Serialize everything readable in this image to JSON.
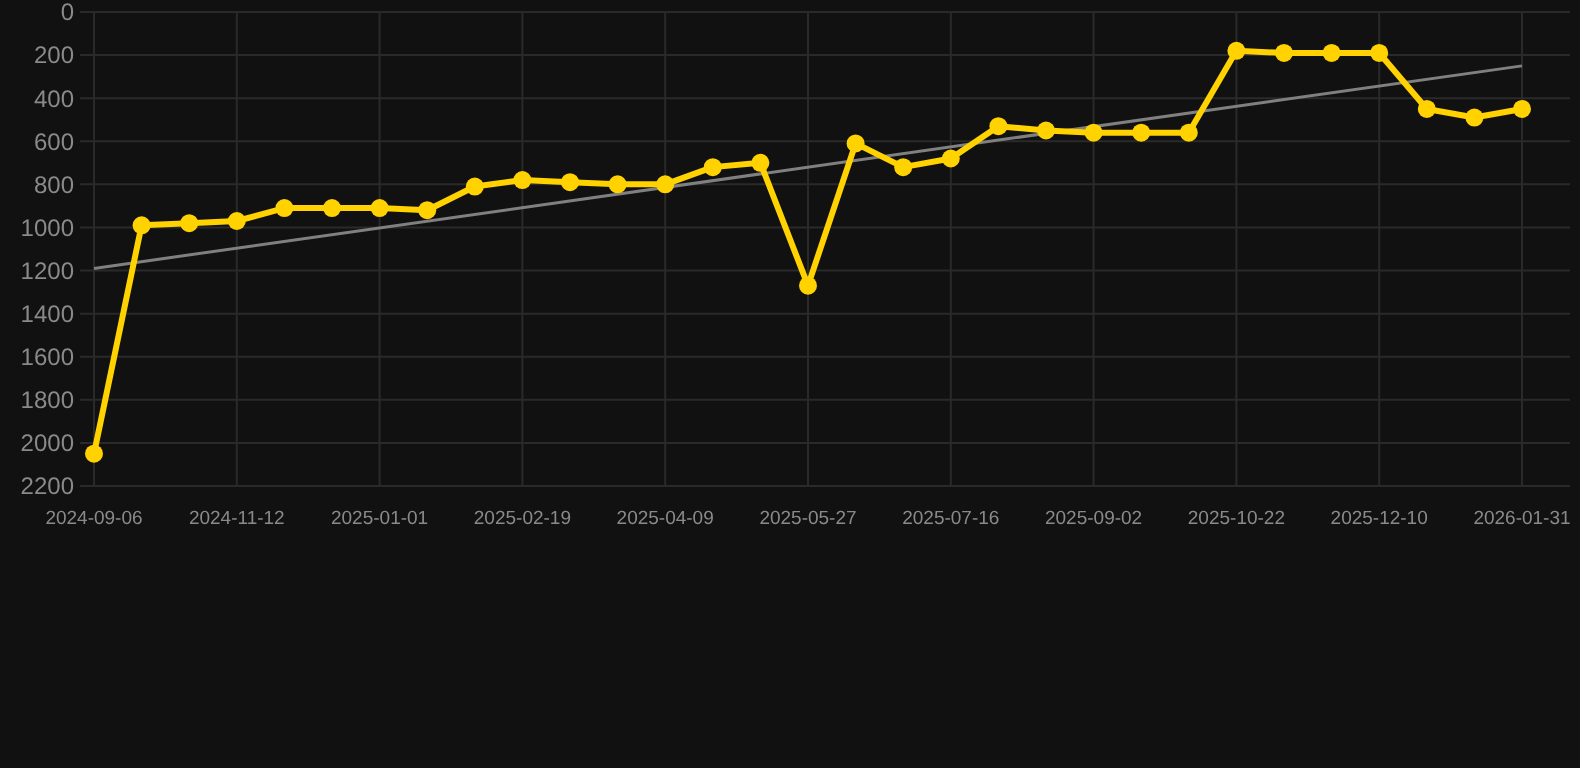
{
  "chart_data": {
    "type": "line",
    "categories": [
      "2024-09-06",
      null,
      null,
      "2024-11-12",
      null,
      null,
      "2025-01-01",
      null,
      null,
      "2025-02-19",
      null,
      null,
      "2025-04-09",
      null,
      null,
      "2025-05-27",
      null,
      null,
      "2025-07-16",
      null,
      null,
      "2025-09-02",
      null,
      null,
      "2025-10-22",
      null,
      null,
      "2025-12-10",
      null,
      null,
      "2026-01-31"
    ],
    "series": [
      {
        "type": "line",
        "color": "#808080",
        "marker": "none",
        "values": [
          1190,
          null,
          null,
          null,
          null,
          null,
          null,
          null,
          null,
          null,
          null,
          null,
          null,
          null,
          null,
          null,
          null,
          null,
          null,
          null,
          null,
          null,
          null,
          null,
          null,
          null,
          null,
          null,
          null,
          null,
          250
        ]
      },
      {
        "type": "line",
        "color": "#ffd200",
        "marker": "circle",
        "values": [
          2050,
          990,
          980,
          970,
          910,
          910,
          910,
          920,
          810,
          780,
          790,
          800,
          800,
          720,
          700,
          1270,
          610,
          720,
          680,
          530,
          550,
          560,
          560,
          560,
          180,
          190,
          190,
          190,
          450,
          490,
          450
        ]
      }
    ],
    "ylim": [
      2200,
      0
    ],
    "yticks": [
      0,
      200,
      400,
      600,
      800,
      1000,
      1200,
      1400,
      1600,
      1800,
      2000,
      2200
    ],
    "grid": true
  }
}
